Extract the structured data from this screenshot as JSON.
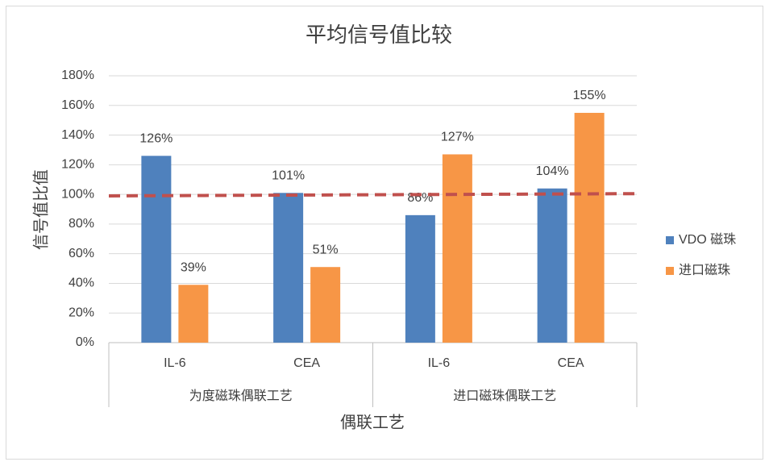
{
  "chart_data": {
    "type": "bar",
    "title": "平均信号值比较",
    "x_label": "偶联工艺",
    "y_label": "信号值比值",
    "categories": [
      "IL-6",
      "CEA",
      "IL-6",
      "CEA"
    ],
    "groups": [
      "为度磁珠偶联工艺",
      "进口磁珠偶联工艺"
    ],
    "series": [
      {
        "name": "VDO 磁珠",
        "color": "#4f81bd",
        "values": [
          126,
          101,
          86,
          104
        ],
        "value_labels": [
          "126%",
          "101%",
          "86%",
          "104%"
        ]
      },
      {
        "name": "进口磁珠",
        "color": "#f79646",
        "values": [
          39,
          51,
          127,
          155
        ],
        "value_labels": [
          "39%",
          "51%",
          "127%",
          "155%"
        ]
      }
    ],
    "ylim": [
      0,
      180
    ],
    "yticks": [
      {
        "value": 0,
        "label": "0%"
      },
      {
        "value": 20,
        "label": "20%"
      },
      {
        "value": 40,
        "label": "40%"
      },
      {
        "value": 60,
        "label": "60%"
      },
      {
        "value": 80,
        "label": "80%"
      },
      {
        "value": 100,
        "label": "100%"
      },
      {
        "value": 120,
        "label": "120%"
      },
      {
        "value": 140,
        "label": "140%"
      },
      {
        "value": 160,
        "label": "160%"
      },
      {
        "value": 180,
        "label": "180%"
      }
    ],
    "grid": true,
    "legend": "right",
    "reference_line": {
      "values": [
        99,
        100.5
      ],
      "color": "#c0504d"
    }
  }
}
